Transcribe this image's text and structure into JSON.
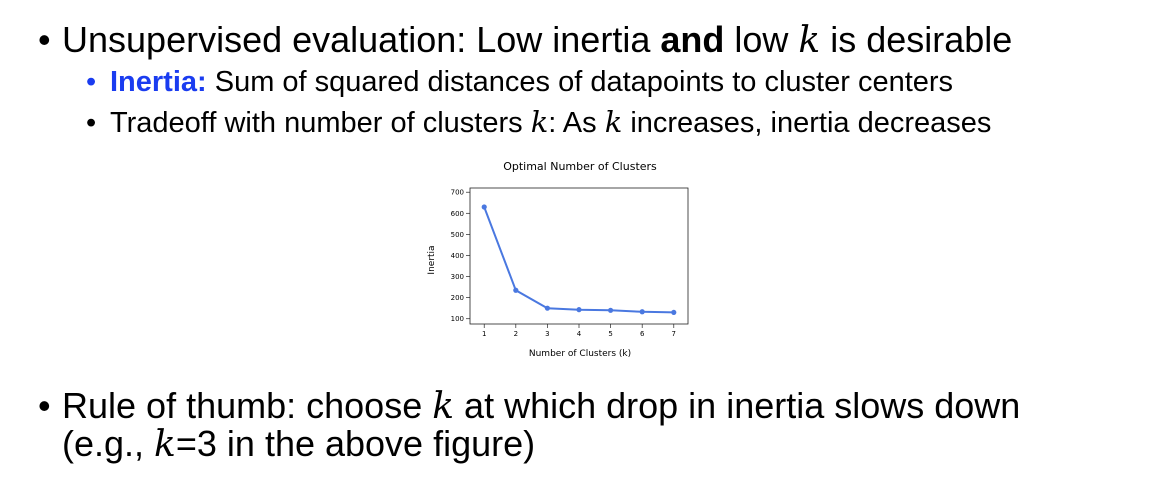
{
  "bullets": {
    "main1": {
      "marker": "•",
      "pre": "Unsupervised evaluation: Low inertia ",
      "bold": "and",
      "mid": " low ",
      "var": "k",
      "post": " is desirable"
    },
    "sub1": {
      "marker": "•",
      "term": "Inertia:",
      "text": " Sum of squared distances of datapoints to cluster centers"
    },
    "sub2": {
      "marker": "•",
      "pre": "Tradeoff with number of clusters ",
      "var1": "k",
      "mid": ": As ",
      "var2": "k",
      "post": " increases, inertia decreases"
    },
    "main2": {
      "marker": "•",
      "pre": "Rule of thumb: choose ",
      "var": "k",
      "post": " at which drop in inertia slows down",
      "line2_pre": "(e.g., ",
      "line2_var": "k",
      "line2_post": "=3 in the above figure)"
    }
  },
  "chart_data": {
    "type": "line",
    "title": "Optimal Number of Clusters",
    "xlabel": "Number of Clusters (k)",
    "ylabel": "Inertia",
    "x": [
      1,
      2,
      3,
      4,
      5,
      6,
      7
    ],
    "y": [
      630,
      235,
      150,
      143,
      140,
      133,
      130
    ],
    "xlim": [
      0.55,
      7.45
    ],
    "ylim": [
      75,
      720
    ],
    "yticks": [
      100,
      200,
      300,
      400,
      500,
      600,
      700
    ],
    "xticks": [
      1,
      2,
      3,
      4,
      5,
      6,
      7
    ],
    "grid": false,
    "line_color": "#4a78e0"
  }
}
